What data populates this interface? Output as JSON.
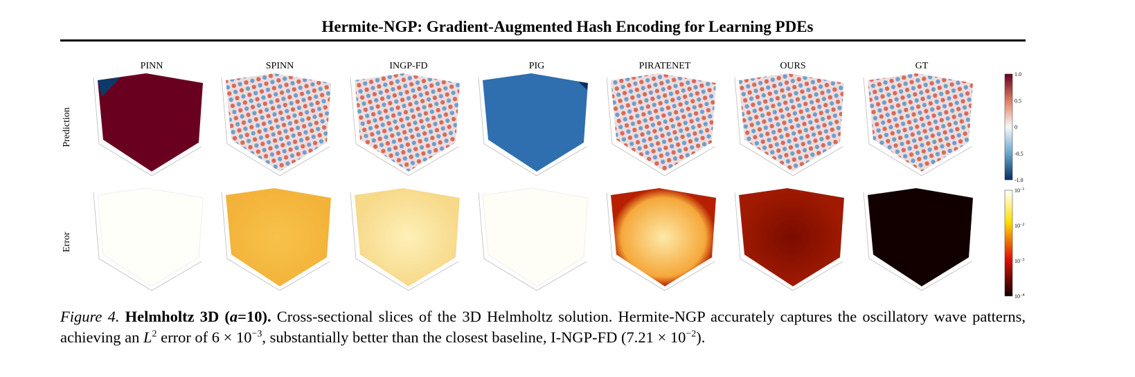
{
  "header": {
    "title": "Hermite-NGP: Gradient-Augmented Hash Encoding for Learning PDEs"
  },
  "figure": {
    "columns": [
      "PINN",
      "SPINN",
      "INGP-FD",
      "PIG",
      "PIRATENET",
      "OURS",
      "GT"
    ],
    "rows": [
      "Prediction",
      "Error"
    ],
    "colorbar_prediction": [
      "1.0",
      "0.5",
      "0",
      "-0.5",
      "-1.0"
    ],
    "colorbar_error": [
      {
        "base": "10",
        "exp": "−1"
      },
      {
        "base": "10",
        "exp": "−2"
      },
      {
        "base": "10",
        "exp": "−3"
      },
      {
        "base": "10",
        "exp": "−4"
      }
    ]
  },
  "caption": {
    "figure_label": "Figure 4.",
    "heading_start": "Helmholtz 3D (",
    "heading_var": "a",
    "heading_end": "=10).",
    "text_1": "Cross-sectional slices of the 3D Helmholtz solution. Hermite-NGP accurately captures the oscillatory wave patterns, achieving an",
    "norm": "L",
    "norm_exp": "2",
    "text_2": "error of 6 × 10",
    "exp_1": "−3",
    "text_3": ", substantially better than the closest baseline, I-NGP-FD (7.21 × 10",
    "exp_2": "−2",
    "text_4": ")."
  }
}
